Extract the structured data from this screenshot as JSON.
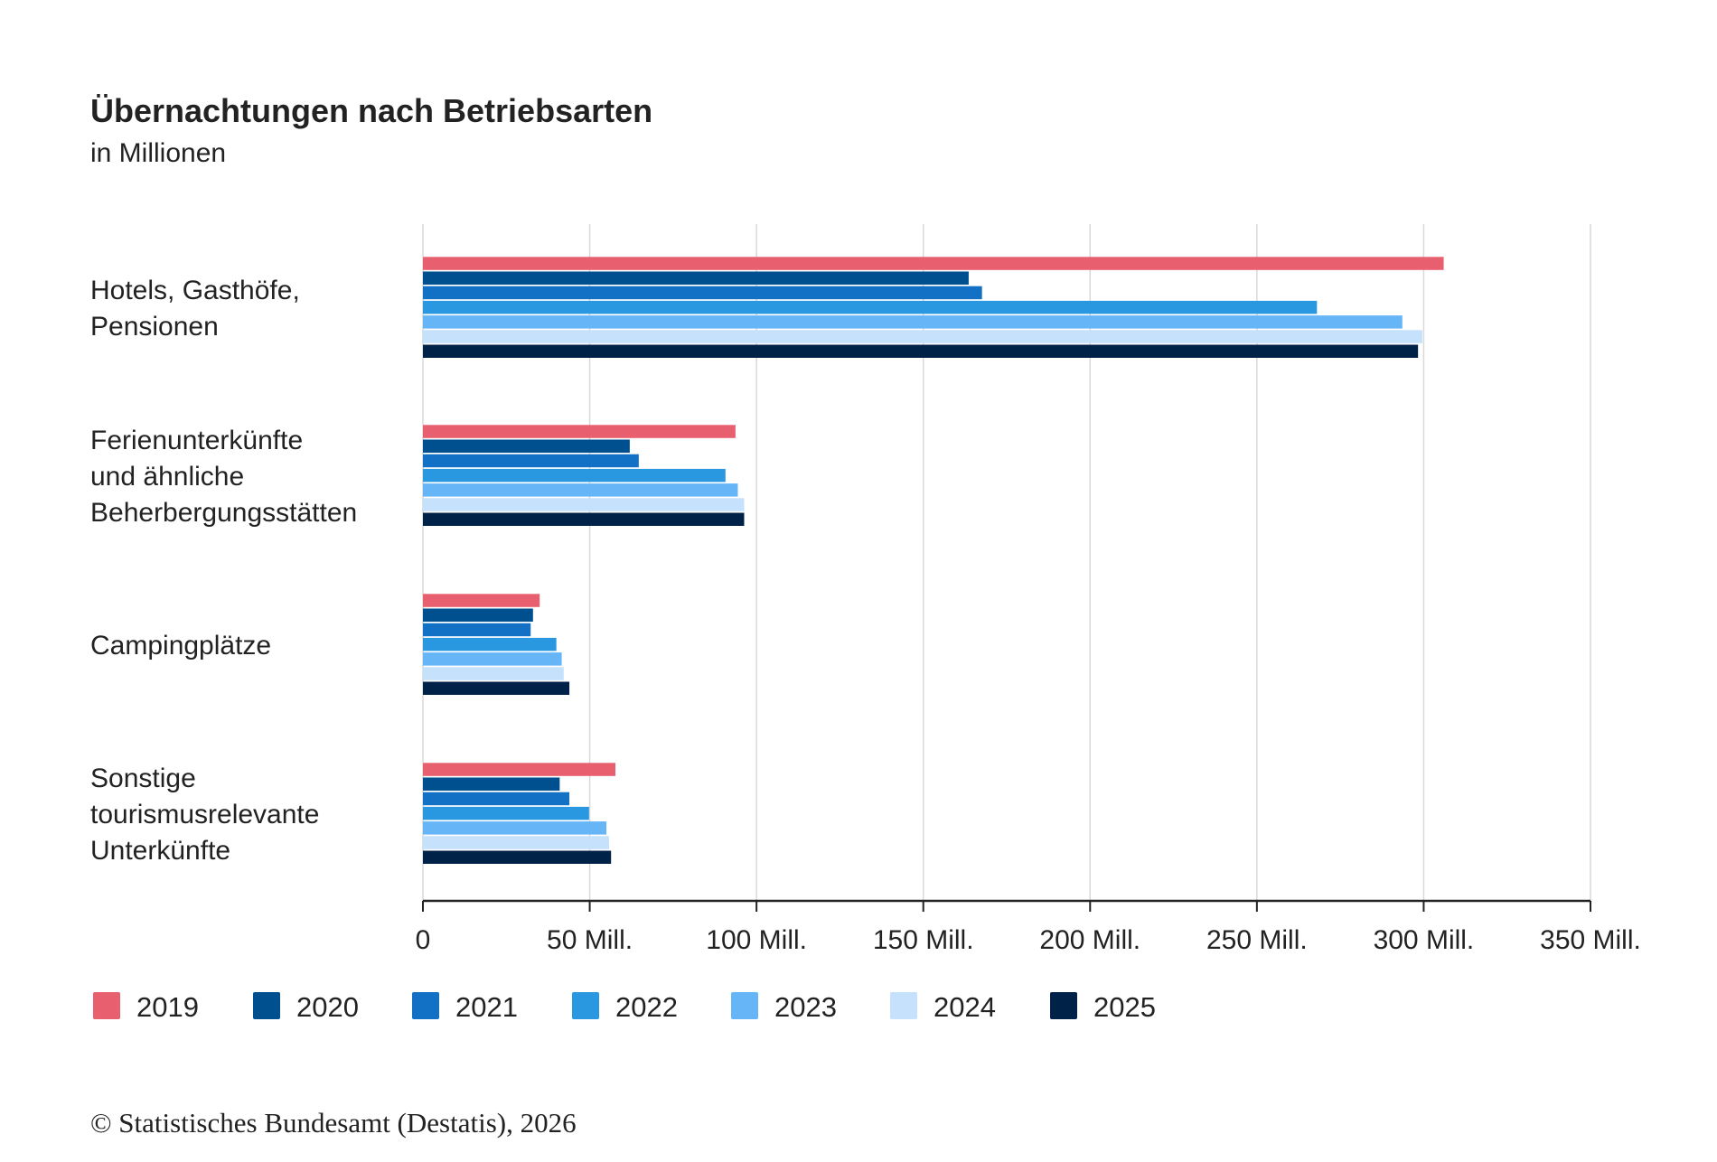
{
  "title": "Übernachtungen nach Betriebsarten",
  "subtitle": "in Millionen",
  "source": "© Statistisches Bundesamt (Destatis), 2026",
  "chart_data": {
    "type": "bar",
    "orientation": "horizontal",
    "title": "Übernachtungen nach Betriebsarten",
    "subtitle": "in Millionen",
    "categories": [
      [
        "Hotels, Gasthöfe,",
        "Pensionen"
      ],
      [
        "Ferienunterkünfte",
        "und ähnliche",
        "Beherbergungsstätten"
      ],
      [
        "Campingplätze"
      ],
      [
        "Sonstige",
        "tourismusrelevante",
        "Unterkünfte"
      ]
    ],
    "series": [
      {
        "name": "2019",
        "color": "#e8606f",
        "values": [
          306,
          93.7,
          35,
          57.7
        ]
      },
      {
        "name": "2020",
        "color": "#004f8f",
        "values": [
          163.6,
          62,
          33,
          41
        ]
      },
      {
        "name": "2021",
        "color": "#1271c4",
        "values": [
          167.6,
          64.7,
          32.3,
          43.9
        ]
      },
      {
        "name": "2022",
        "color": "#2a98e0",
        "values": [
          268,
          90.7,
          40,
          49.8
        ]
      },
      {
        "name": "2023",
        "color": "#66b6f7",
        "values": [
          293.6,
          94.4,
          41.6,
          55
        ]
      },
      {
        "name": "2024",
        "color": "#c5e1fb",
        "values": [
          299.6,
          96.3,
          42.2,
          55.8
        ]
      },
      {
        "name": "2025",
        "color": "#002248",
        "values": [
          298.3,
          96.3,
          43.9,
          56.4
        ]
      }
    ],
    "xlim": [
      0,
      350
    ],
    "xticks": [
      0,
      50,
      100,
      150,
      200,
      250,
      300,
      350
    ],
    "xtick_labels": [
      "0",
      "50 Mill.",
      "100 Mill.",
      "150 Mill.",
      "200 Mill.",
      "250 Mill.",
      "300 Mill.",
      "350 Mill."
    ],
    "grid": true,
    "legend_position": "bottom-left"
  }
}
